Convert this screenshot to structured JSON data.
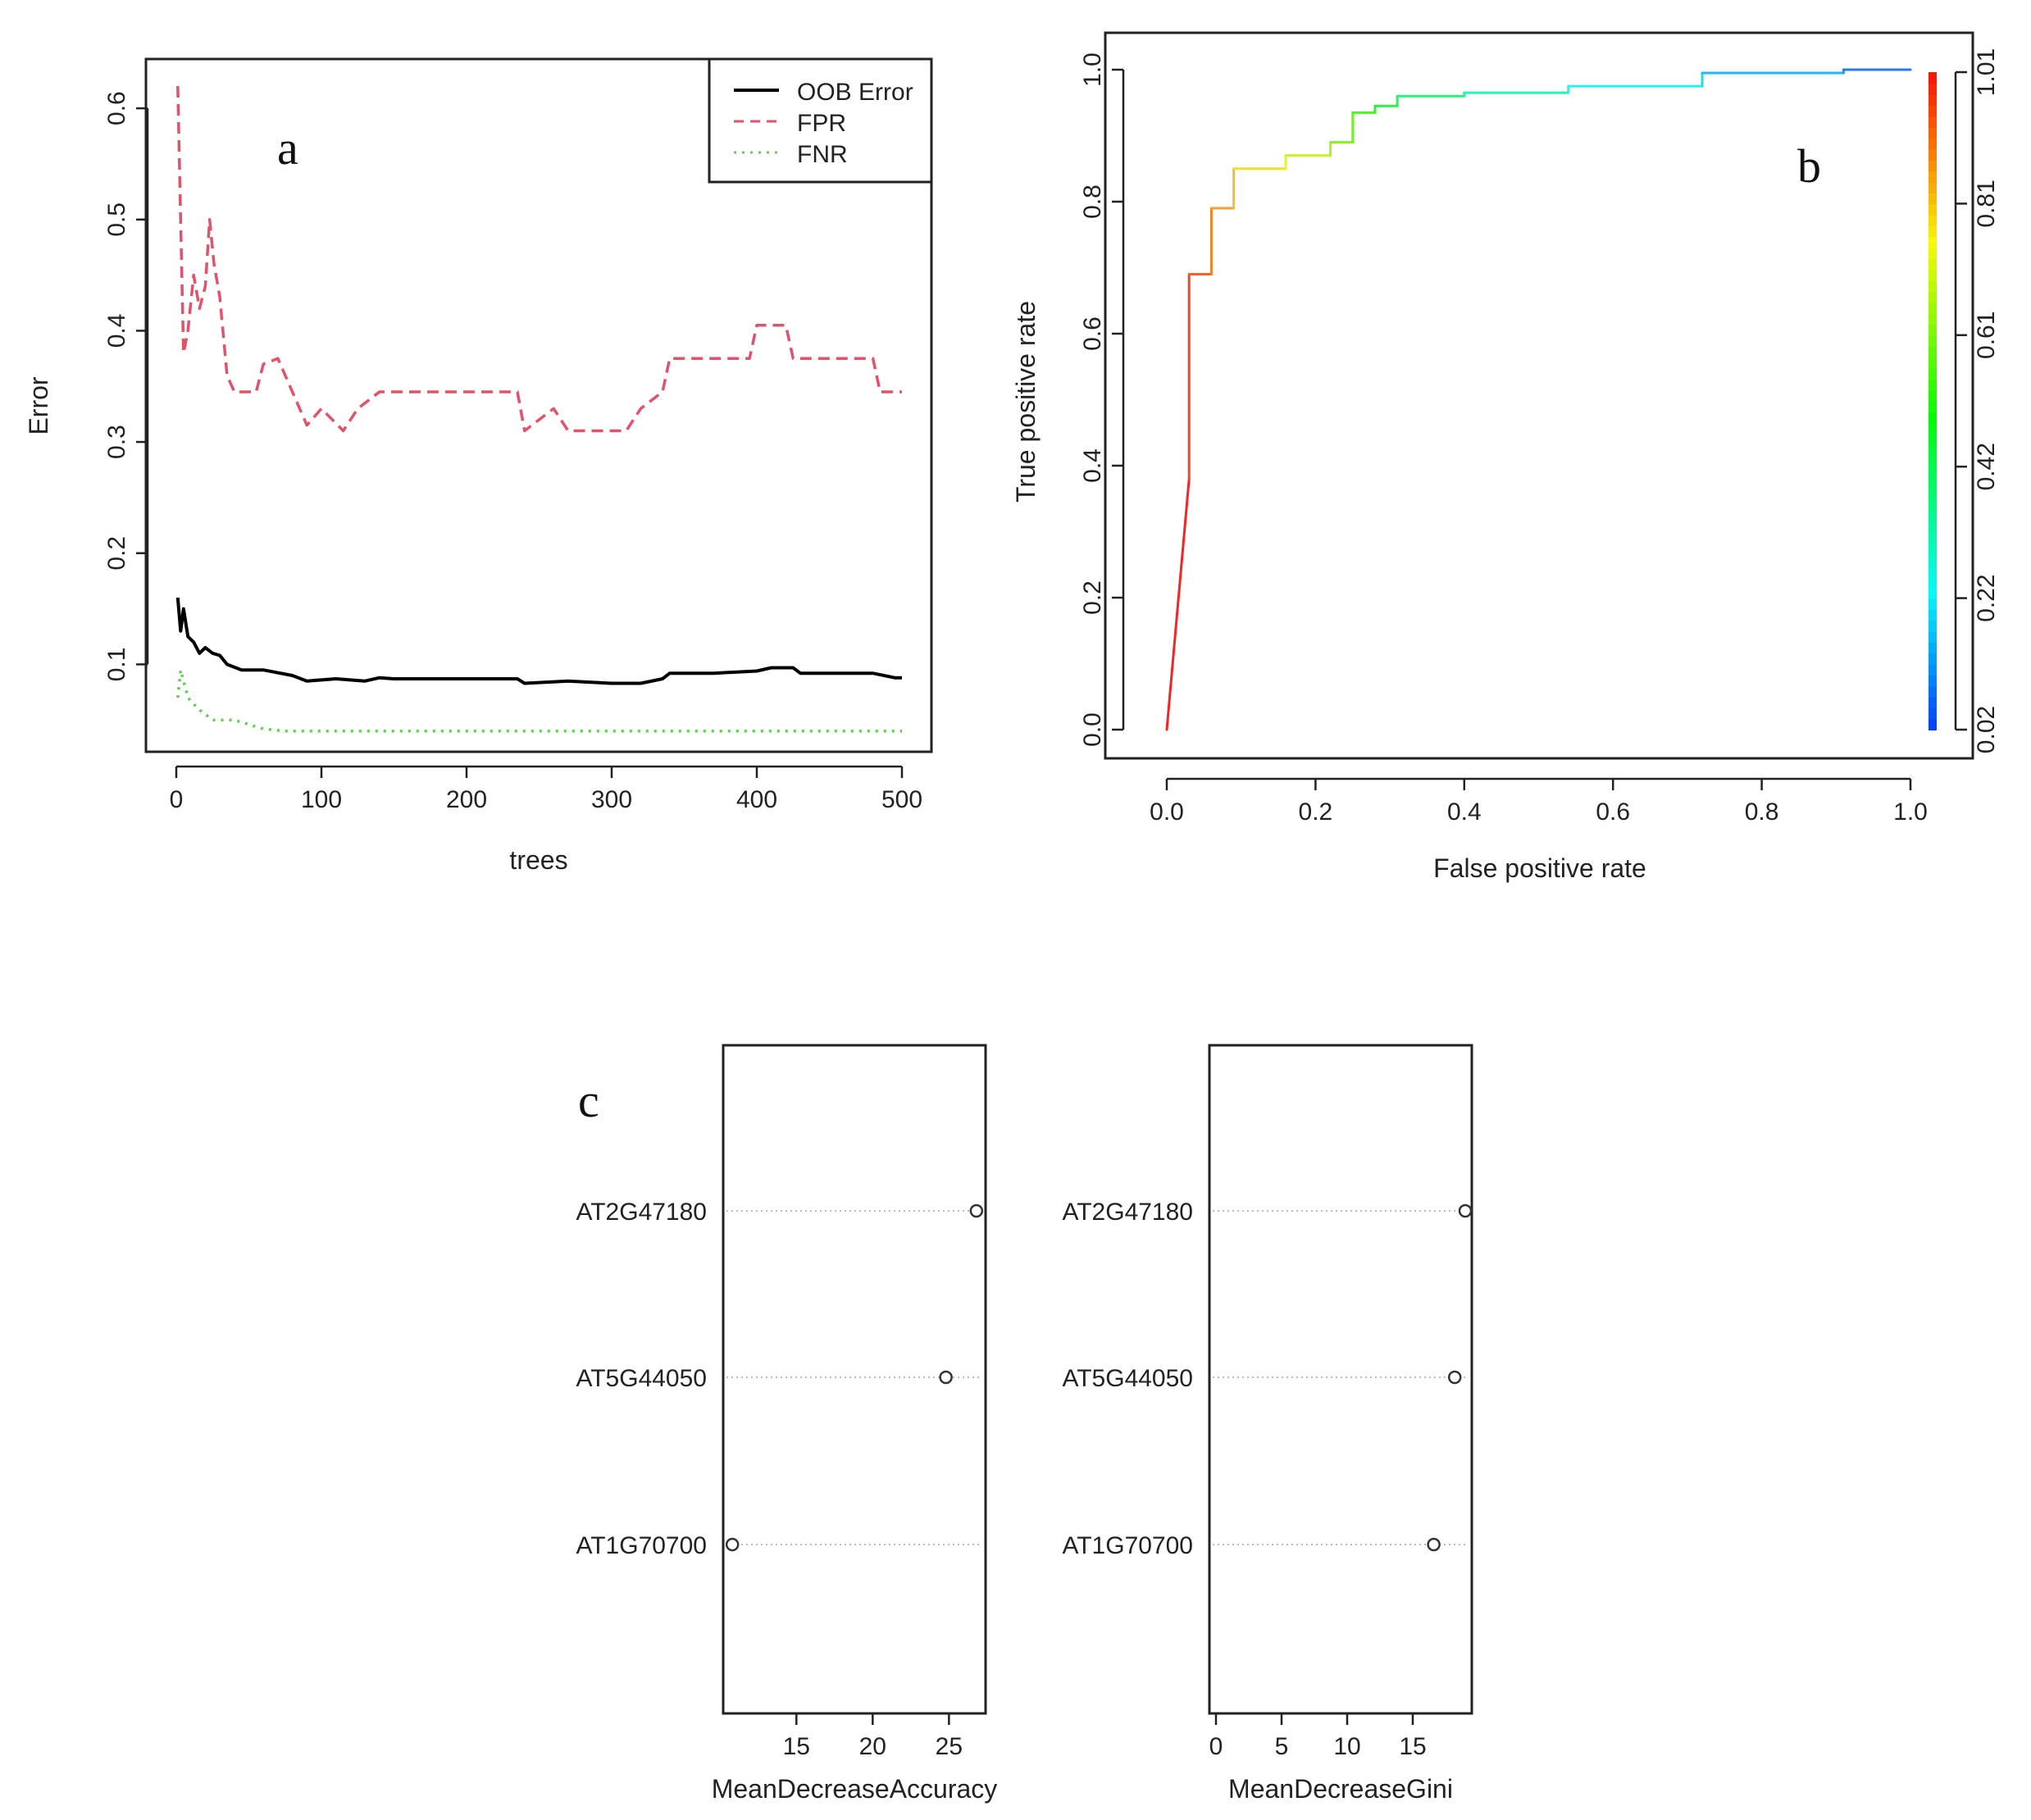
{
  "colors": {
    "oob": "#000000",
    "fpr": "#DF536B",
    "fnr": "#61D04F",
    "frame": "#222222",
    "dot_grid": "#bbbbbb"
  },
  "chart_data": [
    {
      "panel": "a",
      "type": "line",
      "xlabel": "trees",
      "ylabel": "Error",
      "xlim": [
        0,
        500
      ],
      "ylim": [
        0,
        0.6
      ],
      "xticks": [
        "0",
        "100",
        "200",
        "300",
        "400",
        "500"
      ],
      "yticks": [
        "0.1",
        "0.2",
        "0.3",
        "0.4",
        "0.5",
        "0.6"
      ],
      "legend": {
        "position": "top-right",
        "entries": [
          "OOB Error",
          "FPR",
          "FNR"
        ]
      },
      "series": [
        {
          "name": "OOB Error",
          "style": "solid",
          "points": [
            [
              1,
              0.16
            ],
            [
              3,
              0.13
            ],
            [
              5,
              0.15
            ],
            [
              8,
              0.125
            ],
            [
              12,
              0.12
            ],
            [
              16,
              0.11
            ],
            [
              20,
              0.115
            ],
            [
              25,
              0.11
            ],
            [
              30,
              0.108
            ],
            [
              35,
              0.1
            ],
            [
              45,
              0.095
            ],
            [
              60,
              0.095
            ],
            [
              80,
              0.09
            ],
            [
              90,
              0.085
            ],
            [
              110,
              0.087
            ],
            [
              130,
              0.085
            ],
            [
              140,
              0.088
            ],
            [
              150,
              0.087
            ],
            [
              200,
              0.087
            ],
            [
              235,
              0.087
            ],
            [
              240,
              0.083
            ],
            [
              270,
              0.085
            ],
            [
              300,
              0.083
            ],
            [
              320,
              0.083
            ],
            [
              335,
              0.087
            ],
            [
              340,
              0.092
            ],
            [
              370,
              0.092
            ],
            [
              400,
              0.094
            ],
            [
              410,
              0.097
            ],
            [
              425,
              0.097
            ],
            [
              430,
              0.092
            ],
            [
              480,
              0.092
            ],
            [
              495,
              0.088
            ],
            [
              500,
              0.088
            ]
          ]
        },
        {
          "name": "FPR",
          "style": "dashed",
          "points": [
            [
              1,
              0.62
            ],
            [
              3,
              0.5
            ],
            [
              5,
              0.38
            ],
            [
              8,
              0.4
            ],
            [
              12,
              0.45
            ],
            [
              16,
              0.42
            ],
            [
              20,
              0.44
            ],
            [
              23,
              0.5
            ],
            [
              26,
              0.46
            ],
            [
              30,
              0.43
            ],
            [
              35,
              0.36
            ],
            [
              40,
              0.345
            ],
            [
              55,
              0.345
            ],
            [
              60,
              0.37
            ],
            [
              70,
              0.375
            ],
            [
              80,
              0.345
            ],
            [
              90,
              0.315
            ],
            [
              100,
              0.33
            ],
            [
              115,
              0.31
            ],
            [
              125,
              0.33
            ],
            [
              140,
              0.345
            ],
            [
              200,
              0.345
            ],
            [
              235,
              0.345
            ],
            [
              240,
              0.31
            ],
            [
              260,
              0.33
            ],
            [
              270,
              0.31
            ],
            [
              310,
              0.31
            ],
            [
              320,
              0.33
            ],
            [
              335,
              0.345
            ],
            [
              340,
              0.375
            ],
            [
              395,
              0.375
            ],
            [
              400,
              0.405
            ],
            [
              420,
              0.405
            ],
            [
              425,
              0.375
            ],
            [
              480,
              0.375
            ],
            [
              485,
              0.345
            ],
            [
              500,
              0.345
            ]
          ]
        },
        {
          "name": "FNR",
          "style": "dotted",
          "points": [
            [
              1,
              0.07
            ],
            [
              3,
              0.095
            ],
            [
              8,
              0.07
            ],
            [
              15,
              0.06
            ],
            [
              25,
              0.05
            ],
            [
              40,
              0.05
            ],
            [
              60,
              0.042
            ],
            [
              75,
              0.04
            ],
            [
              100,
              0.04
            ],
            [
              300,
              0.04
            ],
            [
              500,
              0.04
            ]
          ]
        }
      ]
    },
    {
      "panel": "b",
      "type": "line",
      "xlabel": "False positive rate",
      "ylabel": "True positive rate",
      "xlim": [
        0,
        1
      ],
      "ylim": [
        0,
        1
      ],
      "xticks": [
        "0.0",
        "0.2",
        "0.4",
        "0.6",
        "0.8",
        "1.0"
      ],
      "yticks": [
        "0.0",
        "0.2",
        "0.4",
        "0.6",
        "0.8",
        "1.0"
      ],
      "colorbar": {
        "labels": [
          "0.02",
          "0.22",
          "0.42",
          "0.61",
          "0.81",
          "1.01"
        ]
      },
      "roc": [
        [
          0,
          0
        ],
        [
          0.03,
          0.38
        ],
        [
          0.03,
          0.69
        ],
        [
          0.06,
          0.69
        ],
        [
          0.06,
          0.79
        ],
        [
          0.09,
          0.79
        ],
        [
          0.09,
          0.85
        ],
        [
          0.16,
          0.85
        ],
        [
          0.16,
          0.87
        ],
        [
          0.22,
          0.87
        ],
        [
          0.22,
          0.89
        ],
        [
          0.25,
          0.89
        ],
        [
          0.25,
          0.935
        ],
        [
          0.28,
          0.935
        ],
        [
          0.28,
          0.945
        ],
        [
          0.31,
          0.945
        ],
        [
          0.31,
          0.96
        ],
        [
          0.4,
          0.96
        ],
        [
          0.4,
          0.965
        ],
        [
          0.54,
          0.965
        ],
        [
          0.54,
          0.975
        ],
        [
          0.72,
          0.975
        ],
        [
          0.72,
          0.995
        ],
        [
          0.91,
          0.995
        ],
        [
          0.91,
          1.0
        ],
        [
          1.0,
          1.0
        ]
      ]
    },
    {
      "panel": "c",
      "type": "scatter",
      "subtype": "dotchart",
      "genes": [
        "AT2G47180",
        "AT5G44050",
        "AT1G70700"
      ],
      "plots": [
        {
          "xlabel": "MeanDecreaseAccuracy",
          "xlim": [
            10.2,
            27.4
          ],
          "xticks": [
            "15",
            "20",
            "25"
          ],
          "values": [
            26.8,
            24.8,
            10.8
          ]
        },
        {
          "xlabel": "MeanDecreaseGini",
          "xlim": [
            -0.5,
            19.5
          ],
          "xticks": [
            "0",
            "5",
            "10",
            "15"
          ],
          "values": [
            19.0,
            18.2,
            16.6
          ]
        }
      ]
    }
  ]
}
